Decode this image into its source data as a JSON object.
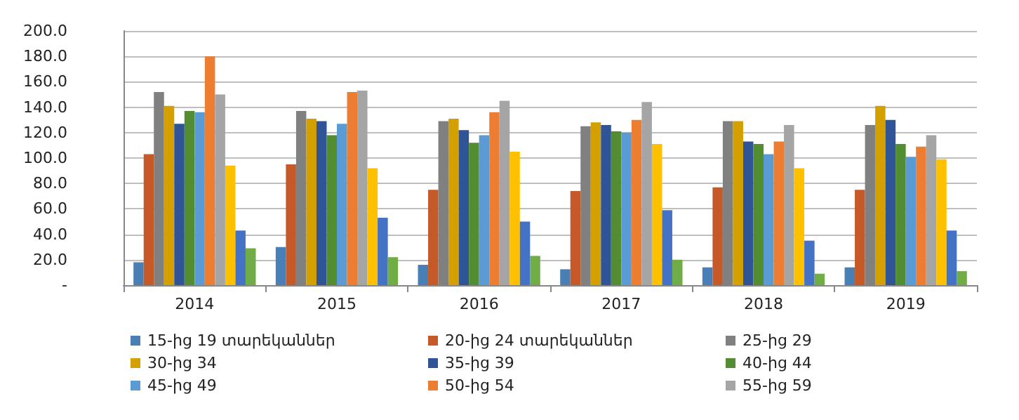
{
  "chart_data": {
    "type": "bar",
    "categories": [
      "2014",
      "2015",
      "2016",
      "2017",
      "2018",
      "2019"
    ],
    "series": [
      {
        "name": "15-ից 19 տարեկաններ",
        "color": "#4a7fb5",
        "values": [
          18,
          30,
          16,
          12.5,
          14,
          14
        ]
      },
      {
        "name": "20-ից 24 տարեկաններ",
        "color": "#c55a28",
        "values": [
          103,
          95,
          75,
          74,
          77,
          75
        ]
      },
      {
        "name": "25-ից 29",
        "color": "#808080",
        "values": [
          152,
          137,
          129,
          125,
          129,
          126
        ]
      },
      {
        "name": "30-ից 34",
        "color": "#d4a000",
        "values": [
          141,
          131,
          131,
          128,
          129,
          141
        ]
      },
      {
        "name": "35-ից 39",
        "color": "#2f5597",
        "values": [
          127,
          129,
          122,
          126,
          113,
          130
        ]
      },
      {
        "name": "40-ից 44",
        "color": "#538d32",
        "values": [
          137,
          118,
          112,
          121,
          111,
          111
        ]
      },
      {
        "name": "45-ից 49",
        "color": "#5b9bd5",
        "values": [
          136,
          127,
          118,
          120,
          103,
          101
        ]
      },
      {
        "name": "50-ից 54",
        "color": "#ed7d31",
        "values": [
          180,
          152,
          136,
          130,
          113,
          109
        ]
      },
      {
        "name": "55-ից 59",
        "color": "#a5a5a5",
        "values": [
          150,
          153,
          145,
          144,
          126,
          118
        ]
      },
      {
        "color": "#ffc000",
        "values": [
          94,
          92,
          105,
          111,
          92,
          99
        ]
      },
      {
        "color": "#4472c4",
        "values": [
          43,
          53,
          50,
          59,
          35,
          43
        ]
      },
      {
        "color": "#70ad47",
        "values": [
          29,
          22,
          23,
          20,
          9,
          11
        ]
      }
    ],
    "ylim": [
      0,
      200
    ],
    "yticks": [
      {
        "value": 0,
        "label": "-"
      },
      {
        "value": 20,
        "label": "20.0"
      },
      {
        "value": 40,
        "label": "40.0"
      },
      {
        "value": 60,
        "label": "60.0"
      },
      {
        "value": 80,
        "label": "80.0"
      },
      {
        "value": 100,
        "label": "100.0"
      },
      {
        "value": 120,
        "label": "120.0"
      },
      {
        "value": 140,
        "label": "140.0"
      },
      {
        "value": 160,
        "label": "160.0"
      },
      {
        "value": 180,
        "label": "180.0"
      },
      {
        "value": 200,
        "label": "200.0"
      }
    ],
    "grid": "y",
    "legend": "bottom"
  }
}
